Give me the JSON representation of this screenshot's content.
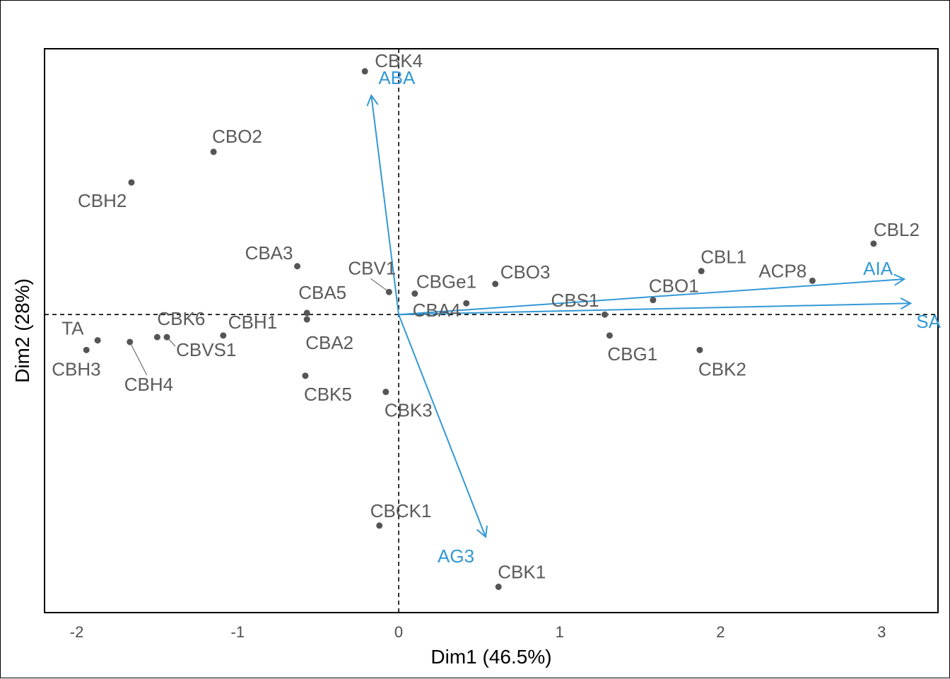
{
  "chart_data": {
    "type": "scatter",
    "subtype": "pca-biplot",
    "xlabel": "Dim1 (46.5%)",
    "ylabel": "Dim2 (28%)",
    "xlim": [
      -2.2,
      3.35
    ],
    "ylim": [
      -1.85,
      1.65
    ],
    "xticks": [
      -2,
      -1,
      0,
      1,
      2,
      3
    ],
    "xtick_labels": [
      "-2",
      "-1",
      "0",
      "1",
      "2",
      "3"
    ],
    "grid": false,
    "zero_lines": true,
    "point_color": "#555555",
    "variable_color": "#3399d6",
    "points": [
      {
        "label": "CBK4",
        "x": -0.21,
        "y": 1.51
      },
      {
        "label": "CBO2",
        "x": -1.15,
        "y": 1.01
      },
      {
        "label": "CBH2",
        "x": -1.66,
        "y": 0.82
      },
      {
        "label": "CBA3",
        "x": -0.63,
        "y": 0.3
      },
      {
        "label": "CBV1",
        "x": -0.06,
        "y": 0.14
      },
      {
        "label": "CBGe1",
        "x": 0.1,
        "y": 0.13
      },
      {
        "label": "CBO3",
        "x": 0.6,
        "y": 0.19
      },
      {
        "label": "CBL1",
        "x": 1.88,
        "y": 0.27
      },
      {
        "label": "CBL2",
        "x": 2.95,
        "y": 0.44
      },
      {
        "label": "CBO1",
        "x": 1.58,
        "y": 0.09
      },
      {
        "label": "ACP8",
        "x": 2.57,
        "y": 0.21
      },
      {
        "label": "CBA5",
        "x": -0.57,
        "y": 0.01
      },
      {
        "label": "CBS1",
        "x": 1.28,
        "y": 0.0
      },
      {
        "label": "CBA4",
        "x": 0.42,
        "y": 0.07
      },
      {
        "label": "CBA2",
        "x": -0.57,
        "y": -0.03
      },
      {
        "label": "CBH1",
        "x": -1.09,
        "y": -0.13
      },
      {
        "label": "CBK6",
        "x": -1.5,
        "y": -0.14
      },
      {
        "label": "CBVS1",
        "x": -1.44,
        "y": -0.14
      },
      {
        "label": "TA",
        "x": -1.87,
        "y": -0.16
      },
      {
        "label": "CBH3",
        "x": -1.94,
        "y": -0.22
      },
      {
        "label": "CBH4",
        "x": -1.67,
        "y": -0.17
      },
      {
        "label": "CBG1",
        "x": 1.31,
        "y": -0.13
      },
      {
        "label": "CBK2",
        "x": 1.87,
        "y": -0.22
      },
      {
        "label": "CBK5",
        "x": -0.58,
        "y": -0.38
      },
      {
        "label": "CBK3",
        "x": -0.08,
        "y": -0.48
      },
      {
        "label": "CBCK1",
        "x": -0.12,
        "y": -1.31
      },
      {
        "label": "CBK1",
        "x": 0.62,
        "y": -1.69
      }
    ],
    "variables": [
      {
        "label": "ABA",
        "x": -0.17,
        "y": 1.36
      },
      {
        "label": "AIA",
        "x": 3.14,
        "y": 0.22
      },
      {
        "label": "SA",
        "x": 3.18,
        "y": 0.07
      },
      {
        "label": "AG3",
        "x": 0.54,
        "y": -1.38
      }
    ]
  }
}
